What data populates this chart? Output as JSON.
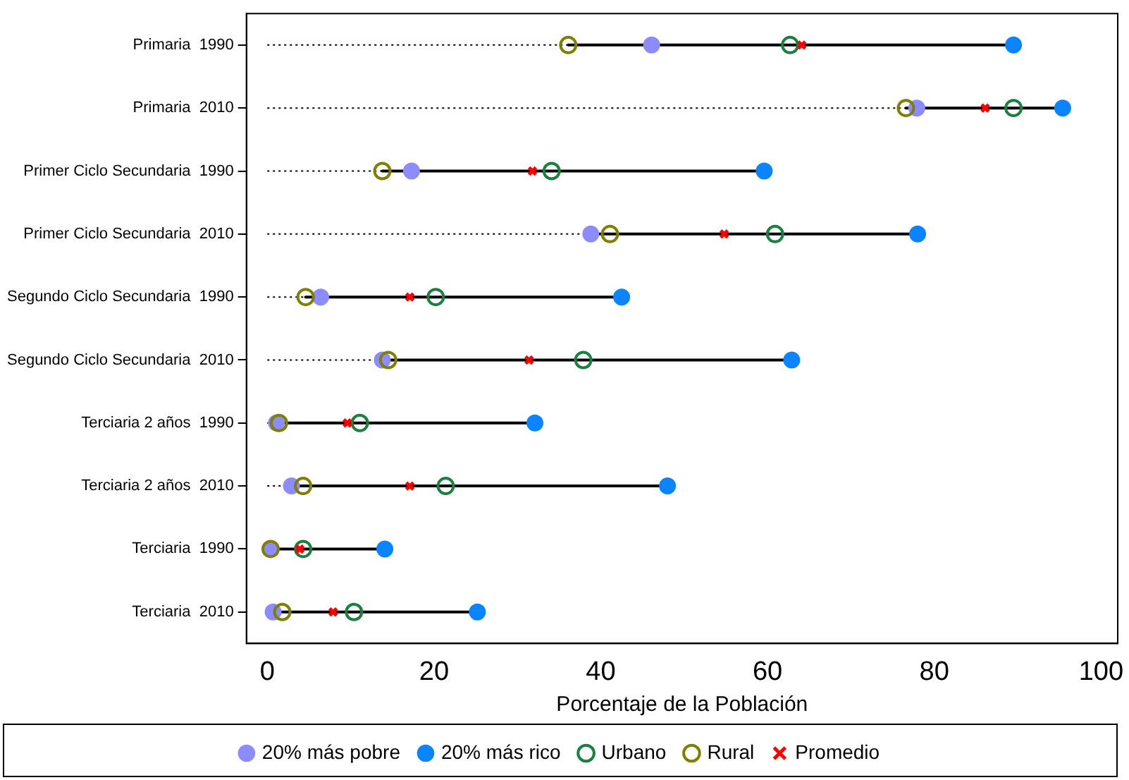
{
  "chart_data": {
    "type": "scatter",
    "orientation": "horizontal",
    "xlabel": "Porcentaje de la Población",
    "categories": [
      "Primaria  1990",
      "Primaria  2010",
      "Primer Ciclo Secundaria  1990",
      "Primer Ciclo Secundaria  2010",
      "Segundo Ciclo Secundaria  1990",
      "Segundo Ciclo Secundaria  2010",
      "Terciaria 2 años  1990",
      "Terciaria 2 años  2010",
      "Terciaria  1990",
      "Terciaria  2010"
    ],
    "series": [
      {
        "name": "20% más pobre",
        "color": "#8c8cff",
        "marker": "circle",
        "values": [
          46.1,
          77.9,
          17.3,
          38.8,
          6.4,
          13.8,
          1.1,
          2.9,
          0.4,
          0.7
        ]
      },
      {
        "name": "20% más rico",
        "color": "#0a84ff",
        "marker": "circle",
        "values": [
          89.5,
          95.4,
          59.6,
          78.0,
          42.5,
          62.9,
          32.1,
          48.0,
          14.1,
          25.2
        ]
      },
      {
        "name": "Urbano",
        "color": "#1a7f3f",
        "marker": "circle",
        "values": [
          62.7,
          89.5,
          34.1,
          60.9,
          20.2,
          37.9,
          11.1,
          21.4,
          4.3,
          10.4
        ]
      },
      {
        "name": "Rural",
        "color": "#808000",
        "marker": "circle",
        "values": [
          36.1,
          76.6,
          13.8,
          41.1,
          4.6,
          14.5,
          1.4,
          4.3,
          0.4,
          1.8
        ]
      },
      {
        "name": "Promedio",
        "color": "#ff0000",
        "marker": "cross",
        "values": [
          64.1,
          86.1,
          31.8,
          54.8,
          17.1,
          31.4,
          9.6,
          17.1,
          3.9,
          7.9
        ]
      }
    ],
    "xlim": [
      -2.5,
      102
    ],
    "xticks": [
      0,
      20,
      40,
      60,
      80,
      100
    ],
    "grid": false,
    "legend": "bottom"
  }
}
